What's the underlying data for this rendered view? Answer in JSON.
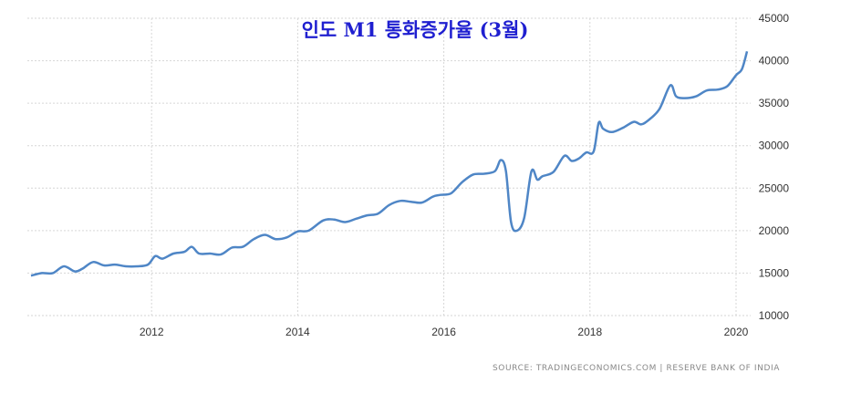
{
  "chart_data": {
    "type": "line",
    "title": "인도 M1 통화증가율 (3월)",
    "source": "SOURCE: TRADINGECONOMICS.COM  |  RESERVE BANK OF INDIA",
    "xlabel": "",
    "ylabel": "",
    "ylim": [
      10000,
      45000
    ],
    "yticks": [
      10000,
      15000,
      20000,
      25000,
      30000,
      35000,
      40000,
      45000
    ],
    "xlim": [
      2010.3,
      2020.2
    ],
    "xticks": [
      2012,
      2014,
      2016,
      2018,
      2020
    ],
    "grid": true,
    "color": "#4f86c6",
    "series": [
      {
        "x": [
          2010.35,
          2010.5,
          2010.65,
          2010.8,
          2010.95,
          2011.05,
          2011.2,
          2011.35,
          2011.5,
          2011.65,
          2011.8,
          2011.95,
          2012.05,
          2012.15,
          2012.3,
          2012.45,
          2012.55,
          2012.65,
          2012.8,
          2012.95,
          2013.1,
          2013.25,
          2013.4,
          2013.55,
          2013.7,
          2013.85,
          2014.0,
          2014.15,
          2014.35,
          2014.5,
          2014.65,
          2014.8,
          2014.95,
          2015.1,
          2015.25,
          2015.4,
          2015.55,
          2015.7,
          2015.85,
          2015.95,
          2016.1,
          2016.25,
          2016.4,
          2016.55,
          2016.7,
          2016.78,
          2016.85,
          2016.92,
          2017.0,
          2017.1,
          2017.2,
          2017.28,
          2017.35,
          2017.5,
          2017.65,
          2017.75,
          2017.85,
          2017.95,
          2018.05,
          2018.12,
          2018.18,
          2018.3,
          2018.45,
          2018.6,
          2018.7,
          2018.8,
          2018.95,
          2019.1,
          2019.18,
          2019.3,
          2019.45,
          2019.6,
          2019.75,
          2019.88,
          2020.0,
          2020.08,
          2020.15
        ],
        "y": [
          14700,
          15000,
          15000,
          15800,
          15200,
          15500,
          16300,
          15900,
          16000,
          15800,
          15800,
          16000,
          17000,
          16700,
          17300,
          17500,
          18100,
          17300,
          17300,
          17200,
          18000,
          18100,
          19000,
          19500,
          19000,
          19200,
          19900,
          20000,
          21200,
          21300,
          21000,
          21400,
          21800,
          22000,
          23000,
          23500,
          23400,
          23300,
          24000,
          24200,
          24400,
          25700,
          26600,
          26700,
          27000,
          28300,
          27000,
          21000,
          20000,
          21500,
          27000,
          26000,
          26400,
          26900,
          28800,
          28200,
          28500,
          29200,
          29300,
          32700,
          32000,
          31600,
          32100,
          32800,
          32500,
          33000,
          34300,
          37100,
          35800,
          35600,
          35800,
          36500,
          36600,
          37000,
          38300,
          39000,
          41100
        ]
      }
    ]
  }
}
